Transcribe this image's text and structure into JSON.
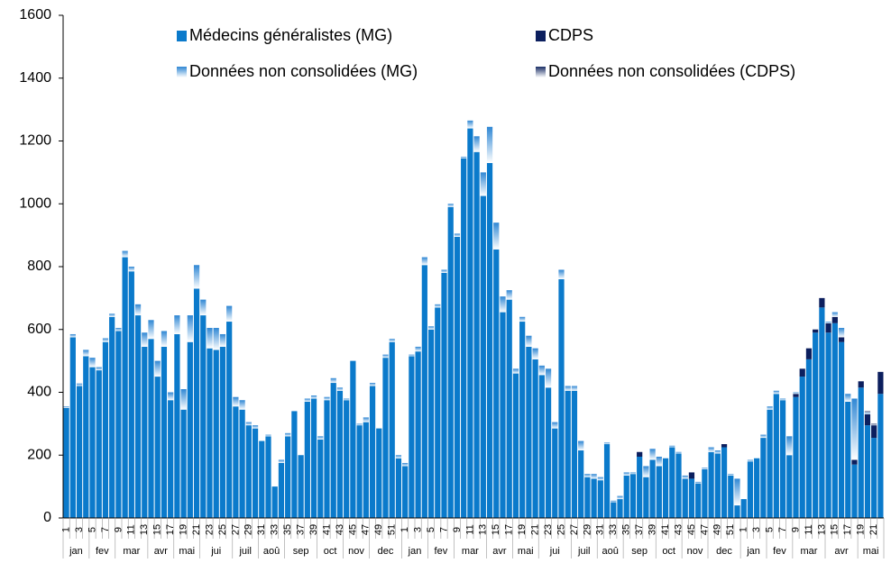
{
  "chart_data": {
    "type": "stacked-bar",
    "categories": [
      "1",
      null,
      "3",
      null,
      "5",
      null,
      "7",
      null,
      "9",
      null,
      "11",
      null,
      "13",
      null,
      "15",
      null,
      "17",
      null,
      "19",
      null,
      "21",
      null,
      "23",
      null,
      "25",
      null,
      "27",
      null,
      "29",
      null,
      "31",
      null,
      "33",
      null,
      "35",
      null,
      "37",
      null,
      "39",
      null,
      "41",
      null,
      "43",
      null,
      "45",
      null,
      "47",
      null,
      "49",
      null,
      "51",
      null,
      "1",
      null,
      "3",
      null,
      "5",
      null,
      "7",
      null,
      "9",
      null,
      "11",
      null,
      "13",
      null,
      "15",
      null,
      "17",
      null,
      "19",
      null,
      "21",
      null,
      "23",
      null,
      "25",
      null,
      "27",
      null,
      "29",
      null,
      "31",
      null,
      "33",
      null,
      "35",
      null,
      "37",
      null,
      "39",
      null,
      "41",
      null,
      "43",
      null,
      "45",
      null,
      "47",
      null,
      "49",
      null,
      "51",
      null,
      "1",
      null,
      "3",
      null,
      "5",
      null,
      "7",
      null,
      "9",
      null,
      "11",
      null,
      "13",
      null,
      "15",
      null,
      "17",
      null,
      "19",
      null,
      "21",
      null
    ],
    "category_groups": [
      {
        "label": "jan",
        "span": 4
      },
      {
        "label": "fev",
        "span": 4
      },
      {
        "label": "mar",
        "span": 5
      },
      {
        "label": "avr",
        "span": 4
      },
      {
        "label": "mai",
        "span": 4
      },
      {
        "label": "jui",
        "span": 5
      },
      {
        "label": "juil",
        "span": 4
      },
      {
        "label": "aoû",
        "span": 4
      },
      {
        "label": "sep",
        "span": 5
      },
      {
        "label": "oct",
        "span": 4
      },
      {
        "label": "nov",
        "span": 4
      },
      {
        "label": "dec",
        "span": 5
      },
      {
        "label": "jan",
        "span": 4
      },
      {
        "label": "fev",
        "span": 4
      },
      {
        "label": "mar",
        "span": 5
      },
      {
        "label": "avr",
        "span": 4
      },
      {
        "label": "mai",
        "span": 4
      },
      {
        "label": "jui",
        "span": 5
      },
      {
        "label": "juil",
        "span": 4
      },
      {
        "label": "aoû",
        "span": 4
      },
      {
        "label": "sep",
        "span": 5
      },
      {
        "label": "oct",
        "span": 4
      },
      {
        "label": "nov",
        "span": 4
      },
      {
        "label": "dec",
        "span": 5
      },
      {
        "label": "jan",
        "span": 4
      },
      {
        "label": "fev",
        "span": 4
      },
      {
        "label": "mar",
        "span": 5
      },
      {
        "label": "avr",
        "span": 5
      },
      {
        "label": "mai",
        "span": 4
      }
    ],
    "series": [
      {
        "name": "Médecins généralistes (MG)",
        "color": "#0b7acb",
        "style": "solid",
        "values": [
          350,
          575,
          420,
          515,
          480,
          470,
          560,
          640,
          595,
          830,
          785,
          645,
          545,
          570,
          450,
          545,
          375,
          585,
          345,
          560,
          730,
          645,
          540,
          535,
          545,
          625,
          355,
          345,
          295,
          285,
          245,
          260,
          100,
          175,
          260,
          340,
          200,
          370,
          380,
          250,
          375,
          430,
          405,
          375,
          500,
          295,
          305,
          420,
          285,
          510,
          560,
          190,
          165,
          515,
          530,
          805,
          600,
          670,
          780,
          990,
          895,
          1145,
          1240,
          1165,
          1025,
          1130,
          855,
          655,
          695,
          460,
          625,
          545,
          505,
          455,
          415,
          285,
          760,
          405,
          405,
          215,
          130,
          125,
          120,
          235,
          50,
          60,
          135,
          140,
          195,
          130,
          185,
          165,
          190,
          225,
          205,
          125,
          125,
          110,
          155,
          210,
          205,
          225,
          135,
          40,
          60,
          180,
          190,
          255,
          345,
          395,
          375,
          200,
          385,
          450,
          505,
          590,
          670,
          590,
          620,
          560,
          370,
          170,
          415,
          295,
          255,
          395
        ]
      },
      {
        "name": "CDPS",
        "color": "#0c1f5e",
        "style": "solid",
        "values": [
          0,
          0,
          0,
          0,
          0,
          0,
          0,
          0,
          0,
          0,
          0,
          0,
          0,
          0,
          0,
          0,
          0,
          0,
          0,
          0,
          0,
          0,
          0,
          0,
          0,
          0,
          0,
          0,
          0,
          0,
          0,
          0,
          0,
          0,
          0,
          0,
          0,
          0,
          0,
          0,
          0,
          0,
          0,
          0,
          0,
          0,
          0,
          0,
          0,
          0,
          0,
          0,
          0,
          0,
          0,
          0,
          0,
          0,
          0,
          0,
          0,
          0,
          0,
          0,
          0,
          0,
          0,
          0,
          0,
          0,
          0,
          0,
          0,
          0,
          0,
          0,
          0,
          0,
          0,
          0,
          0,
          0,
          0,
          0,
          0,
          0,
          0,
          0,
          15,
          0,
          0,
          0,
          0,
          0,
          0,
          0,
          20,
          0,
          0,
          0,
          0,
          10,
          0,
          0,
          0,
          0,
          0,
          0,
          0,
          0,
          0,
          0,
          10,
          25,
          35,
          10,
          30,
          30,
          20,
          15,
          0,
          15,
          20,
          35,
          40,
          70
        ]
      },
      {
        "name": "Données non consolidées (MG)",
        "color": "#2f87d4",
        "style": "gradient",
        "values": [
          5,
          10,
          8,
          20,
          30,
          10,
          12,
          10,
          10,
          20,
          15,
          35,
          45,
          60,
          50,
          50,
          25,
          60,
          65,
          85,
          75,
          50,
          65,
          70,
          40,
          50,
          30,
          30,
          10,
          10,
          0,
          5,
          0,
          10,
          10,
          0,
          0,
          10,
          10,
          10,
          10,
          15,
          10,
          5,
          0,
          5,
          15,
          10,
          0,
          10,
          10,
          10,
          10,
          5,
          15,
          25,
          10,
          10,
          10,
          10,
          10,
          5,
          25,
          50,
          75,
          115,
          85,
          50,
          30,
          15,
          15,
          35,
          35,
          30,
          60,
          20,
          30,
          15,
          15,
          30,
          10,
          15,
          10,
          5,
          5,
          10,
          10,
          5,
          0,
          35,
          35,
          30,
          0,
          5,
          5,
          10,
          0,
          5,
          5,
          15,
          10,
          0,
          5,
          85,
          0,
          5,
          0,
          10,
          10,
          10,
          5,
          60,
          5,
          0,
          0,
          0,
          0,
          5,
          15,
          30,
          25,
          195,
          0,
          5,
          0,
          0
        ]
      },
      {
        "name": "Données non consolidées (CDPS)",
        "color": "#1b2e66",
        "style": "gradient",
        "values": [
          0,
          0,
          0,
          0,
          0,
          0,
          0,
          0,
          0,
          0,
          0,
          0,
          0,
          0,
          0,
          0,
          0,
          0,
          0,
          0,
          0,
          0,
          0,
          0,
          0,
          0,
          0,
          0,
          0,
          0,
          0,
          0,
          0,
          0,
          0,
          0,
          0,
          0,
          0,
          0,
          0,
          0,
          0,
          0,
          0,
          0,
          0,
          0,
          0,
          0,
          0,
          0,
          0,
          0,
          0,
          0,
          0,
          0,
          0,
          0,
          0,
          0,
          0,
          0,
          0,
          0,
          0,
          0,
          0,
          0,
          0,
          0,
          0,
          0,
          0,
          0,
          0,
          0,
          0,
          0,
          0,
          0,
          0,
          0,
          0,
          0,
          0,
          0,
          0,
          0,
          0,
          0,
          0,
          0,
          0,
          0,
          0,
          0,
          0,
          0,
          0,
          0,
          0,
          0,
          0,
          0,
          0,
          0,
          0,
          0,
          0,
          0,
          0,
          0,
          0,
          0,
          0,
          0,
          0,
          0,
          0,
          0,
          0,
          5,
          5,
          0
        ]
      }
    ],
    "ylim": [
      0,
      1600
    ],
    "yticks": [
      0,
      200,
      400,
      600,
      800,
      1000,
      1200,
      1400,
      1600
    ],
    "grid": false,
    "legend": "top"
  }
}
